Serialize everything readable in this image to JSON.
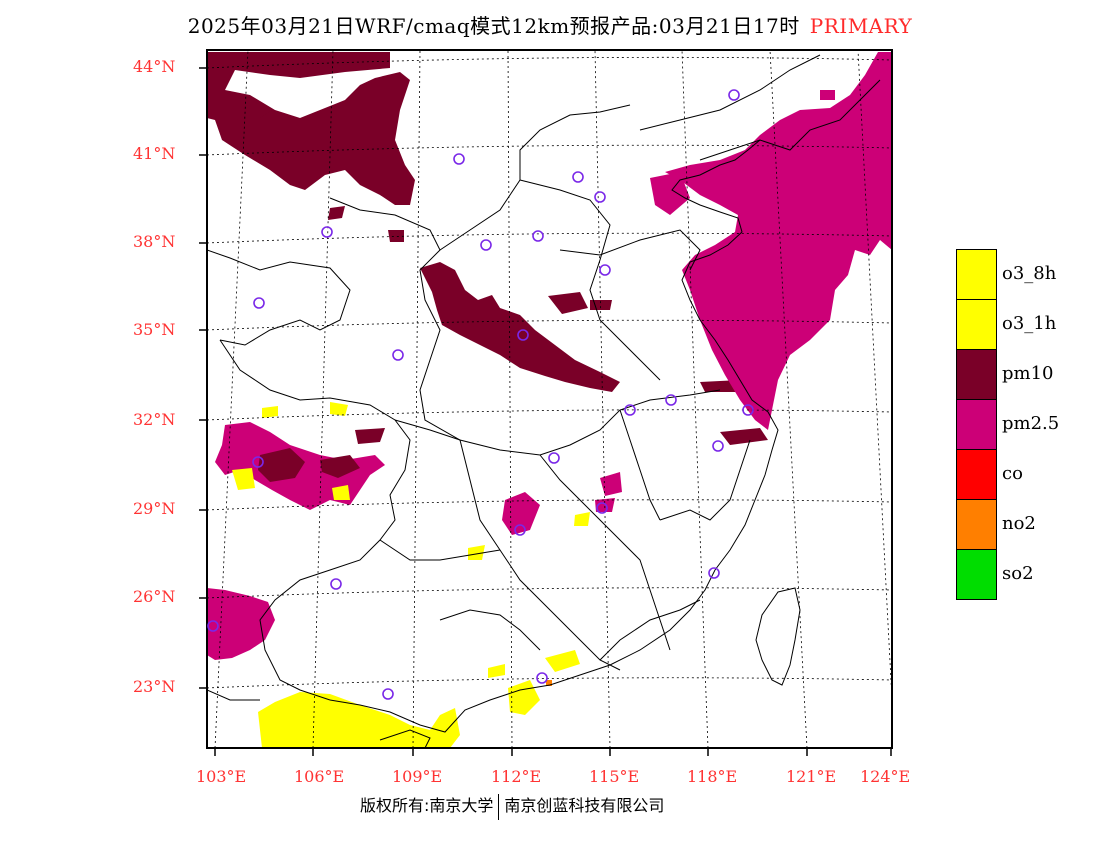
{
  "title": {
    "main": "2025年03月21日WRF/cmaq模式12km预报产品:03月21日17时",
    "tag": "PRIMARY"
  },
  "latitude_labels": [
    "44°N",
    "41°N",
    "38°N",
    "35°N",
    "32°N",
    "29°N",
    "26°N",
    "23°N"
  ],
  "longitude_labels": [
    "103°E",
    "106°E",
    "109°E",
    "112°E",
    "115°E",
    "118°E",
    "121°E",
    "124°E"
  ],
  "legend": [
    {
      "label": "o3_8h",
      "color": "#ffff00"
    },
    {
      "label": "o3_1h",
      "color": "#ffff00"
    },
    {
      "label": "pm10",
      "color": "#7a0028"
    },
    {
      "label": "pm2.5",
      "color": "#cc0077"
    },
    {
      "label": "co",
      "color": "#ff0000"
    },
    {
      "label": "no2",
      "color": "#ff7f00"
    },
    {
      "label": "so2",
      "color": "#00dd00"
    }
  ],
  "copyright": {
    "left": "版权所有:南京大学",
    "right": "南京创蓝科技有限公司"
  },
  "marker_color": "#7a28e8"
}
